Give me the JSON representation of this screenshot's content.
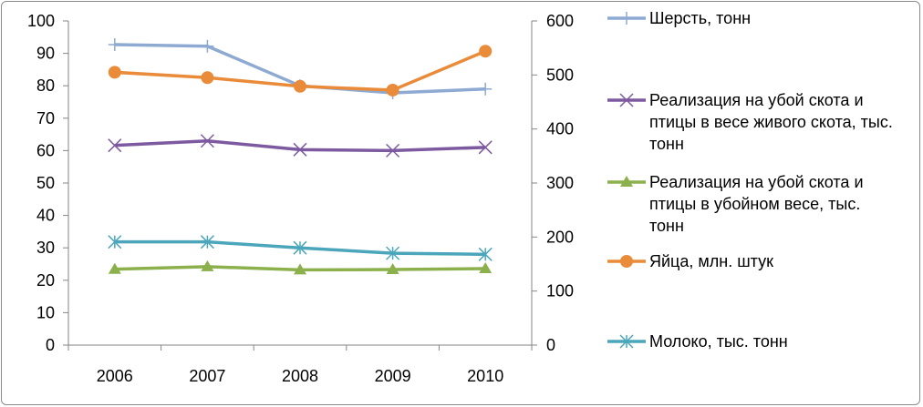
{
  "chart_data": {
    "type": "line",
    "categories": [
      "2006",
      "2007",
      "2008",
      "2009",
      "2010"
    ],
    "y_left": {
      "min": 0,
      "max": 100,
      "step": 10
    },
    "y_right": {
      "min": 0,
      "max": 600,
      "step": 100
    },
    "grid": false,
    "legend_position": "right",
    "series": [
      {
        "name": "Шерсть, тонн",
        "axis": "left",
        "color": "#8eaad2",
        "marker": "plus",
        "values": [
          92.7,
          92.2,
          80.0,
          77.8,
          79.0
        ]
      },
      {
        "name": "Реализация на убой скота и птицы в весе живого скота, тыс. тонн",
        "axis": "left",
        "color": "#7d5aa0",
        "marker": "x",
        "values": [
          61.6,
          63.0,
          60.3,
          60.0,
          61.0
        ]
      },
      {
        "name": "Реализация на убой скота и птицы в убойном весе, тыс. тонн",
        "axis": "left",
        "color": "#8bb04c",
        "marker": "triangle",
        "values": [
          23.4,
          24.2,
          23.2,
          23.3,
          23.6
        ]
      },
      {
        "name": "Яйца, млн. штук",
        "axis": "right",
        "color": "#e98b39",
        "marker": "circle",
        "values": [
          505,
          495,
          479,
          472,
          544
        ]
      },
      {
        "name": "Молоко, тыс. тонн",
        "axis": "right",
        "color": "#4ba6bb",
        "marker": "star",
        "values": [
          191,
          191,
          180,
          170,
          168
        ]
      }
    ]
  }
}
